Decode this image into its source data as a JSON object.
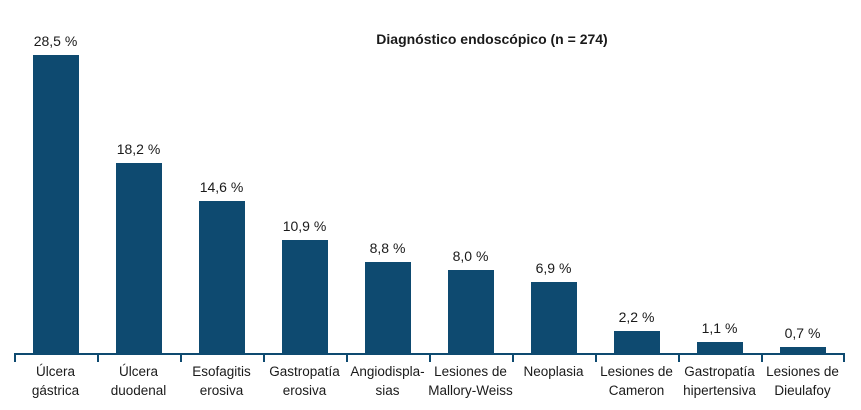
{
  "chart_data": {
    "type": "bar",
    "title": "Diagnóstico endoscópico (n = 274)",
    "categories": [
      "Úlcera gástrica",
      "Úlcera duodenal",
      "Esofagitis erosiva",
      "Gastropatía erosiva",
      "Angiodispla-sias",
      "Lesiones de Mallory-Weiss",
      "Neoplasia",
      "Lesiones de Cameron",
      "Gastropatía hipertensiva",
      "Lesiones de Dieulafoy"
    ],
    "category_lines": [
      [
        "Úlcera",
        "gástrica"
      ],
      [
        "Úlcera",
        "duodenal"
      ],
      [
        "Esofagitis",
        "erosiva"
      ],
      [
        "Gastropatía",
        "erosiva"
      ],
      [
        "Angiodispla-",
        "sias"
      ],
      [
        "Lesiones de",
        "Mallory-Weiss"
      ],
      [
        "Neoplasia"
      ],
      [
        "Lesiones de",
        "Cameron"
      ],
      [
        "Gastropatía",
        "hipertensiva"
      ],
      [
        "Lesiones de",
        "Dieulafoy"
      ]
    ],
    "values": [
      28.5,
      18.2,
      14.6,
      10.9,
      8.8,
      8.0,
      6.9,
      2.2,
      1.1,
      0.7
    ],
    "value_labels": [
      "28,5 %",
      "18,2 %",
      "14,6 %",
      "10,9 %",
      "8,8 %",
      "8,0 %",
      "6,9 %",
      "2,2 %",
      "1,1 %",
      "0,7 %"
    ],
    "xlabel": "",
    "ylabel": "",
    "ylim": [
      0,
      30
    ],
    "grid": false,
    "legend": null,
    "bar_color": "#0e4a70",
    "axis_color": "#0e4a70",
    "text_color": "#1a1a1a"
  }
}
